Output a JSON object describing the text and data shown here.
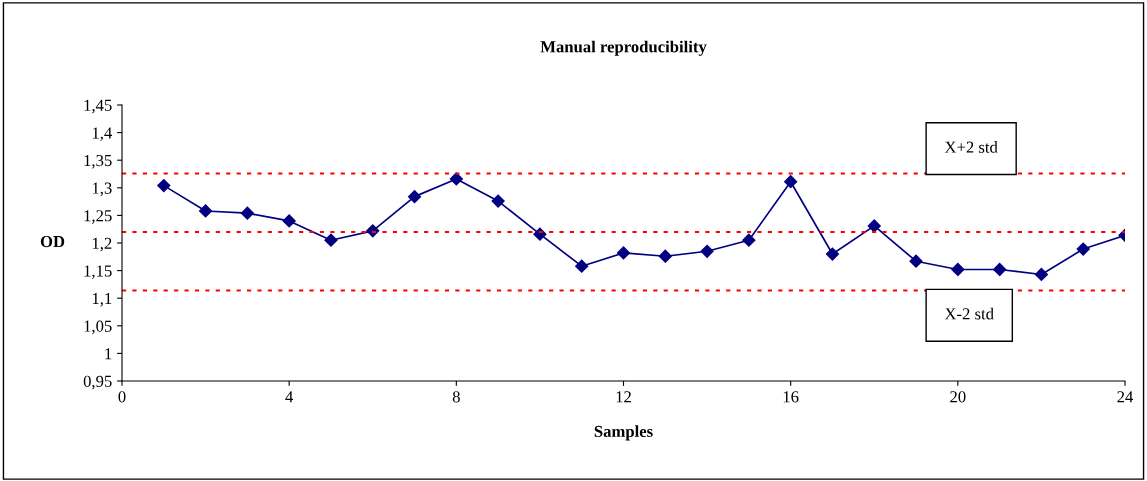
{
  "chart_data": {
    "type": "line",
    "title": "Manual reproducibility",
    "xlabel": "Samples",
    "ylabel": "OD",
    "x": [
      1,
      2,
      3,
      4,
      5,
      6,
      7,
      8,
      9,
      10,
      11,
      12,
      13,
      14,
      15,
      16,
      17,
      18,
      19,
      20,
      21,
      22,
      23,
      24
    ],
    "series": [
      {
        "color": "#000080",
        "values": [
          1.304,
          1.258,
          1.254,
          1.24,
          1.205,
          1.222,
          1.284,
          1.316,
          1.276,
          1.216,
          1.158,
          1.182,
          1.176,
          1.185,
          1.205,
          1.311,
          1.18,
          1.231,
          1.167,
          1.152,
          1.152,
          1.143,
          1.189,
          1.214
        ]
      }
    ],
    "marker": "diamond",
    "line_style": "solid",
    "grid": false,
    "legend": false,
    "xlim": [
      0,
      24
    ],
    "xticks": [
      0,
      4,
      8,
      12,
      16,
      20,
      24
    ],
    "ylim": [
      0.95,
      1.45
    ],
    "yticks": [
      {
        "value": 0.95,
        "label": "0,95"
      },
      {
        "value": 1,
        "label": "1"
      },
      {
        "value": 1.05,
        "label": "1,05"
      },
      {
        "value": 1.1,
        "label": "1,1"
      },
      {
        "value": 1.15,
        "label": "1,15"
      },
      {
        "value": 1.2,
        "label": "1,2"
      },
      {
        "value": 1.25,
        "label": "1,25"
      },
      {
        "value": 1.3,
        "label": "1,3"
      },
      {
        "value": 1.35,
        "label": "1,35"
      },
      {
        "value": 1.4,
        "label": "1,4"
      },
      {
        "value": 1.45,
        "label": "1,45"
      }
    ],
    "ref_lines": [
      {
        "axis": "y",
        "value": 1.326,
        "label": "X+2 std",
        "color": "#ff0000",
        "line_style": "dotted"
      },
      {
        "axis": "y",
        "value": 1.22,
        "color": "#ff0000",
        "line_style": "dotted"
      },
      {
        "axis": "y",
        "value": 1.114,
        "label": "X-2 std",
        "color": "#ff0000",
        "line_style": "dotted"
      }
    ]
  }
}
